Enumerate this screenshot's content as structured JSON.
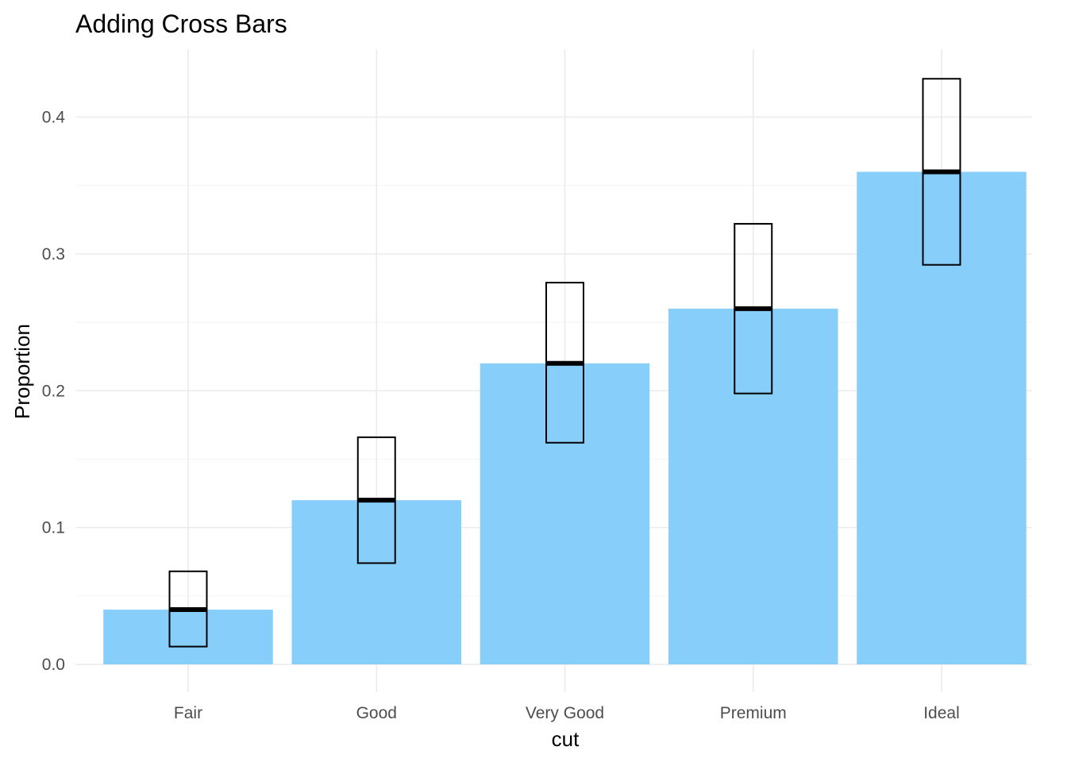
{
  "chart_data": {
    "type": "bar",
    "title": "Adding Cross Bars",
    "xlabel": "cut",
    "ylabel": "Proportion",
    "categories": [
      "Fair",
      "Good",
      "Very Good",
      "Premium",
      "Ideal"
    ],
    "values": [
      0.04,
      0.12,
      0.22,
      0.26,
      0.36
    ],
    "crossbar_lower": [
      0.013,
      0.074,
      0.162,
      0.198,
      0.292
    ],
    "crossbar_upper": [
      0.068,
      0.166,
      0.279,
      0.322,
      0.428
    ],
    "ylim": [
      -0.005,
      0.45
    ],
    "yticks": [
      0.0,
      0.1,
      0.2,
      0.3,
      0.4
    ],
    "ytick_labels": [
      "0.0",
      "0.1",
      "0.2",
      "0.3",
      "0.4"
    ],
    "bar_color": "#87CEFA",
    "crossbar_color": "#000000",
    "grid": true,
    "legend": "none"
  }
}
